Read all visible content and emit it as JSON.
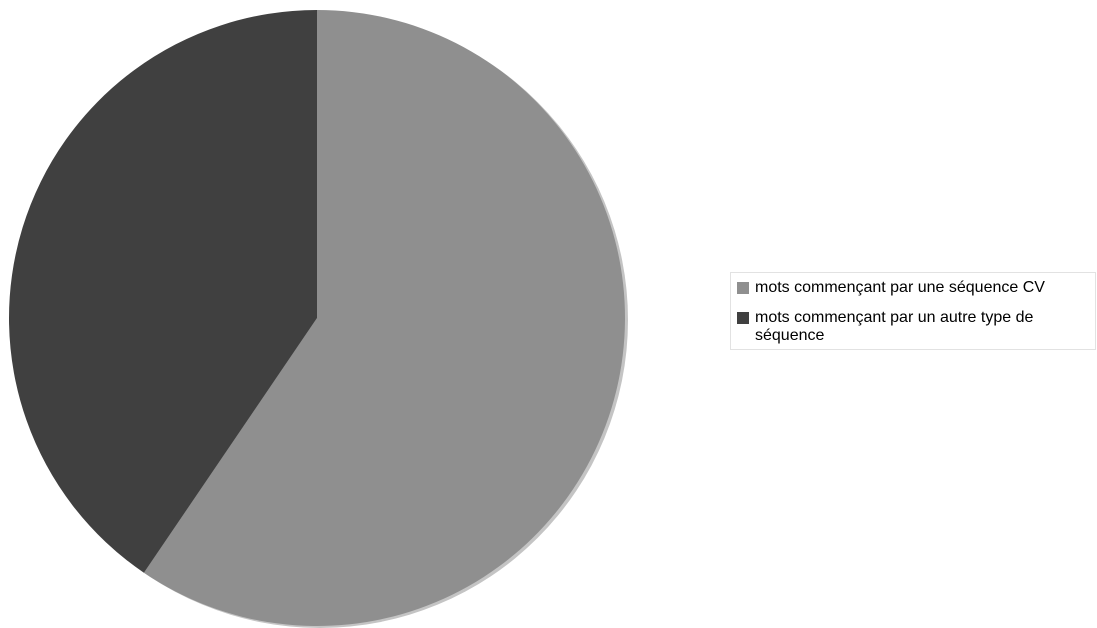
{
  "chart_data": {
    "type": "pie",
    "categories": [
      "mots commençant par une séquence CV",
      "mots commençant par un autre type de séquence"
    ],
    "values": [
      59.5,
      40.5
    ],
    "colors": [
      "#8f8f8f",
      "#404040"
    ],
    "start_angle_deg": 0,
    "direction": "clockwise",
    "legend_position": "right"
  }
}
